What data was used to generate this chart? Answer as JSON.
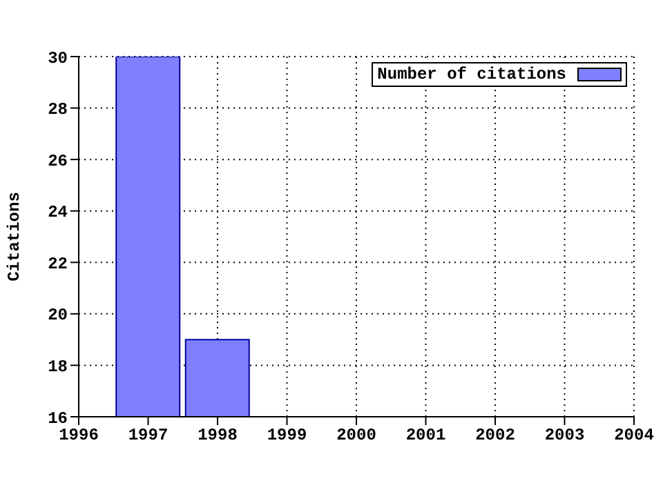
{
  "chart_data": {
    "type": "bar",
    "ylabel": "Citations",
    "x": [
      1997,
      1998
    ],
    "series": [
      {
        "name": "Number of citations",
        "color": "#8080ff",
        "values": [
          30,
          19
        ]
      }
    ],
    "xlim": [
      1996,
      2004
    ],
    "xticks": [
      1996,
      1997,
      1998,
      1999,
      2000,
      2001,
      2002,
      2003,
      2004
    ],
    "ylim": [
      16,
      30
    ],
    "yticks": [
      16,
      18,
      20,
      22,
      24,
      26,
      28,
      30
    ],
    "grid": true,
    "legend": "top right"
  }
}
